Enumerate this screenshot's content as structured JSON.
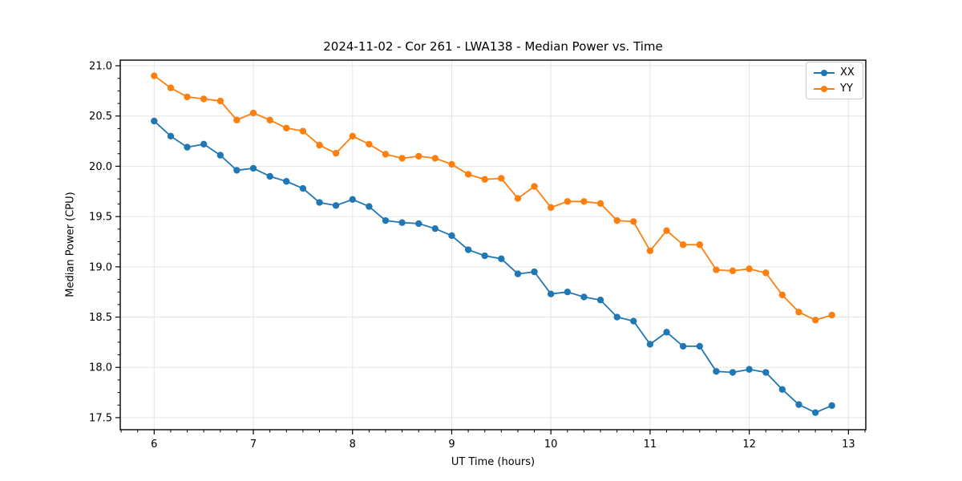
{
  "chart_data": {
    "type": "line",
    "title": "2024-11-02 - Cor 261 - LWA138 - Median Power vs. Time",
    "xlabel": "UT Time (hours)",
    "ylabel": "Median Power (CPU)",
    "xlim": [
      5.658,
      13.175
    ],
    "ylim": [
      17.38,
      21.056
    ],
    "xticks": [
      6,
      7,
      8,
      9,
      10,
      11,
      12,
      13
    ],
    "yticks": [
      17.5,
      18.0,
      18.5,
      19.0,
      19.5,
      20.0,
      20.5,
      21.0
    ],
    "grid": true,
    "legend_position": "upper right",
    "x": [
      6.0,
      6.167,
      6.333,
      6.5,
      6.667,
      6.833,
      7.0,
      7.167,
      7.333,
      7.5,
      7.667,
      7.833,
      8.0,
      8.167,
      8.333,
      8.5,
      8.667,
      8.833,
      9.0,
      9.167,
      9.333,
      9.5,
      9.667,
      9.833,
      10.0,
      10.167,
      10.333,
      10.5,
      10.667,
      10.833,
      11.0,
      11.167,
      11.333,
      11.5,
      11.667,
      11.833,
      12.0,
      12.167,
      12.333,
      12.5,
      12.667,
      12.833
    ],
    "series": [
      {
        "name": "XX",
        "color": "#1f77b4",
        "values": [
          20.45,
          20.3,
          20.19,
          20.22,
          20.11,
          19.96,
          19.98,
          19.9,
          19.85,
          19.78,
          19.64,
          19.61,
          19.67,
          19.6,
          19.46,
          19.44,
          19.43,
          19.38,
          19.31,
          19.17,
          19.11,
          19.08,
          18.93,
          18.95,
          18.73,
          18.75,
          18.7,
          18.67,
          18.5,
          18.46,
          18.23,
          18.35,
          18.21,
          18.21,
          17.96,
          17.95,
          17.98,
          17.95,
          17.78,
          17.63,
          17.55,
          17.62
        ]
      },
      {
        "name": "YY",
        "color": "#ff7f0e",
        "values": [
          20.9,
          20.78,
          20.69,
          20.67,
          20.65,
          20.46,
          20.53,
          20.46,
          20.38,
          20.35,
          20.21,
          20.13,
          20.3,
          20.22,
          20.12,
          20.08,
          20.1,
          20.08,
          20.02,
          19.92,
          19.87,
          19.88,
          19.68,
          19.8,
          19.59,
          19.65,
          19.65,
          19.63,
          19.46,
          19.45,
          19.16,
          19.36,
          19.22,
          19.22,
          18.97,
          18.96,
          18.98,
          18.94,
          18.72,
          18.55,
          18.47,
          18.52
        ]
      }
    ]
  }
}
